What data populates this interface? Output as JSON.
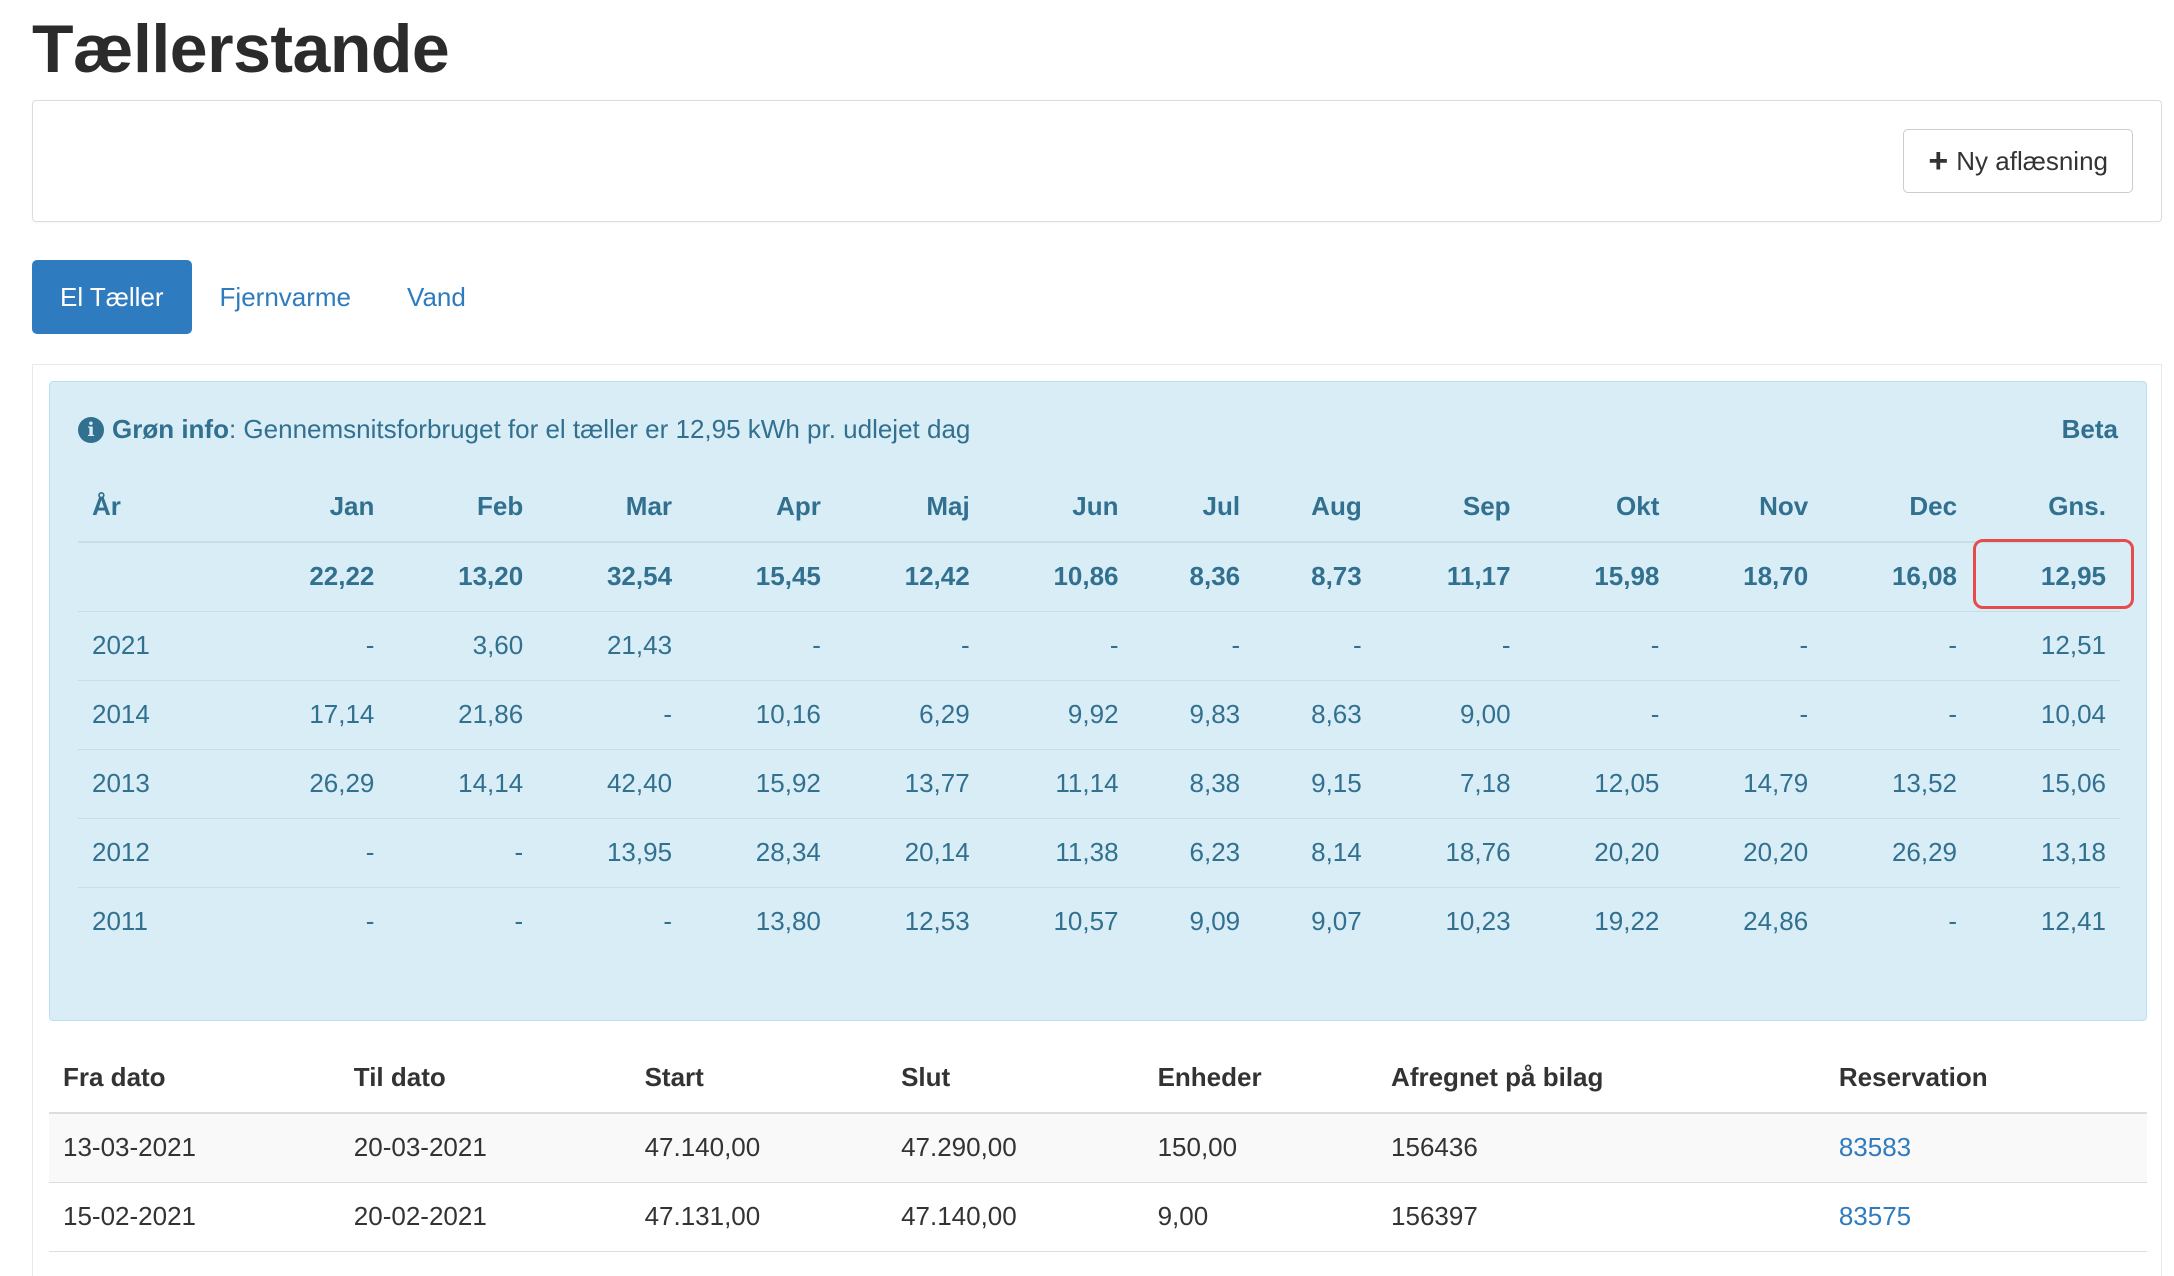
{
  "page": {
    "title": "Tællerstande"
  },
  "actions": {
    "new_reading_label": "Ny aflæsning",
    "new_reading_icon": "plus-icon"
  },
  "tabs": [
    {
      "label": "El Tæller",
      "active": true
    },
    {
      "label": "Fjernvarme",
      "active": false
    },
    {
      "label": "Vand",
      "active": false
    }
  ],
  "info": {
    "icon": "info-circle-icon",
    "label": "Grøn info",
    "text": ": Gennemsnitsforbruget for el tæller er 12,95 kWh pr. udlejet dag",
    "badge": "Beta"
  },
  "stats": {
    "headers": [
      "År",
      "Jan",
      "Feb",
      "Mar",
      "Apr",
      "Maj",
      "Jun",
      "Jul",
      "Aug",
      "Sep",
      "Okt",
      "Nov",
      "Dec",
      "Gns."
    ],
    "rows": [
      [
        "",
        "22,22",
        "13,20",
        "32,54",
        "15,45",
        "12,42",
        "10,86",
        "8,36",
        "8,73",
        "11,17",
        "15,98",
        "18,70",
        "16,08",
        "12,95"
      ],
      [
        "2021",
        "-",
        "3,60",
        "21,43",
        "-",
        "-",
        "-",
        "-",
        "-",
        "-",
        "-",
        "-",
        "-",
        "12,51"
      ],
      [
        "2014",
        "17,14",
        "21,86",
        "-",
        "10,16",
        "6,29",
        "9,92",
        "9,83",
        "8,63",
        "9,00",
        "-",
        "-",
        "-",
        "10,04"
      ],
      [
        "2013",
        "26,29",
        "14,14",
        "42,40",
        "15,92",
        "13,77",
        "11,14",
        "8,38",
        "9,15",
        "7,18",
        "12,05",
        "14,79",
        "13,52",
        "15,06"
      ],
      [
        "2012",
        "-",
        "-",
        "13,95",
        "28,34",
        "20,14",
        "11,38",
        "6,23",
        "8,14",
        "18,76",
        "20,20",
        "20,20",
        "26,29",
        "13,18"
      ],
      [
        "2011",
        "-",
        "-",
        "-",
        "13,80",
        "12,53",
        "10,57",
        "9,09",
        "9,07",
        "10,23",
        "19,22",
        "24,86",
        "-",
        "12,41"
      ]
    ],
    "highlight_color": "#e74c4c"
  },
  "readings": {
    "headers": [
      "Fra dato",
      "Til dato",
      "Start",
      "Slut",
      "Enheder",
      "Afregnet på bilag",
      "Reservation"
    ],
    "rows": [
      [
        "13-03-2021",
        "20-03-2021",
        "47.140,00",
        "47.290,00",
        "150,00",
        "156436",
        "83583"
      ],
      [
        "15-02-2021",
        "20-02-2021",
        "47.131,00",
        "47.140,00",
        "9,00",
        "156397",
        "83575"
      ]
    ]
  },
  "colors": {
    "primary": "#2f7bbf",
    "info_bg": "#d9edf7",
    "info_text": "#31708f"
  }
}
